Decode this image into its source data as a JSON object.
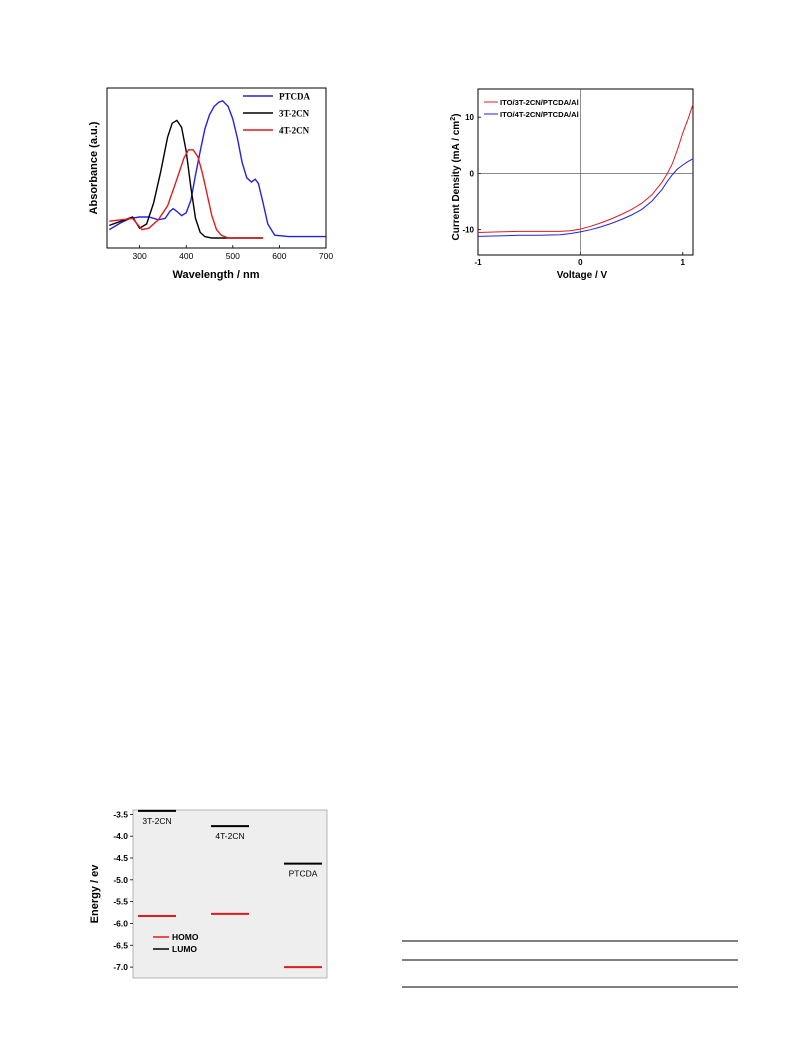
{
  "figures": [
    {
      "chart_data": {
        "type": "line",
        "title": "",
        "xlabel": "Wavelength / nm",
        "ylabel": "Absorbance (a.u.)",
        "xlim": [
          230,
          700
        ],
        "ylim": [
          0,
          1
        ],
        "x_ticks": [
          "300",
          "400",
          "500",
          "600",
          "700"
        ],
        "y_ticks_shown": false,
        "legend_position": "top-right",
        "series": [
          {
            "name": "PTCDA",
            "color": "#2222dd",
            "x": [
              235,
              260,
              280,
              300,
              320,
              340,
              355,
              365,
              372,
              380,
              390,
              400,
              410,
              420,
              430,
              440,
              450,
              460,
              470,
              478,
              490,
              500,
              510,
              520,
              530,
              540,
              548,
              555,
              565,
              575,
              590,
              620,
              660,
              700
            ],
            "y": [
              0.06,
              0.11,
              0.14,
              0.15,
              0.15,
              0.13,
              0.14,
              0.19,
              0.21,
              0.19,
              0.16,
              0.18,
              0.27,
              0.45,
              0.62,
              0.78,
              0.88,
              0.94,
              0.97,
              0.98,
              0.94,
              0.85,
              0.71,
              0.54,
              0.43,
              0.4,
              0.42,
              0.39,
              0.25,
              0.1,
              0.02,
              0.01,
              0.01,
              0.01
            ]
          },
          {
            "name": "3T-2CN",
            "color": "#000000",
            "x": [
              235,
              260,
              285,
              300,
              315,
              330,
              345,
              360,
              370,
              380,
              390,
              400,
              410,
              420,
              430,
              440,
              455,
              470,
              500,
              530,
              565
            ],
            "y": [
              0.09,
              0.12,
              0.15,
              0.07,
              0.1,
              0.25,
              0.47,
              0.72,
              0.82,
              0.84,
              0.79,
              0.62,
              0.36,
              0.14,
              0.04,
              0.01,
              0.0,
              0.0,
              0.0,
              0.0,
              0.0
            ]
          },
          {
            "name": "4T-2CN",
            "color": "#e11b1b",
            "x": [
              235,
              260,
              285,
              305,
              320,
              340,
              360,
              380,
              395,
              405,
              415,
              425,
              435,
              445,
              455,
              465,
              475,
              490,
              520,
              565
            ],
            "y": [
              0.12,
              0.13,
              0.14,
              0.06,
              0.07,
              0.13,
              0.23,
              0.42,
              0.57,
              0.63,
              0.63,
              0.58,
              0.46,
              0.31,
              0.16,
              0.06,
              0.02,
              0.0,
              0.0,
              0.0
            ]
          }
        ]
      }
    },
    {
      "chart_data": {
        "type": "line",
        "title": "",
        "xlabel": "Voltage / V",
        "ylabel": "Current Density (mA / cm",
        "ylabel_sup": "2",
        "ylabel_tail": ")",
        "xlim": [
          -1,
          1.1
        ],
        "ylim": [
          -14.5,
          15
        ],
        "x_ticks": [
          "-1",
          "0",
          "1"
        ],
        "y_ticks": [
          "-10",
          "0",
          "10"
        ],
        "legend_position": "top-left",
        "series": [
          {
            "name": "ITO/3T-2CN/PTCDA/Al",
            "color": "#e11b1b",
            "x": [
              -1.0,
              -0.8,
              -0.6,
              -0.4,
              -0.2,
              -0.1,
              0.0,
              0.1,
              0.2,
              0.3,
              0.4,
              0.5,
              0.6,
              0.7,
              0.8,
              0.85,
              0.9,
              0.95,
              1.0,
              1.05,
              1.1
            ],
            "y": [
              -10.5,
              -10.4,
              -10.3,
              -10.3,
              -10.3,
              -10.2,
              -9.9,
              -9.4,
              -8.8,
              -8.1,
              -7.3,
              -6.4,
              -5.3,
              -3.8,
              -1.5,
              0.0,
              1.8,
              4.3,
              7.2,
              9.6,
              12.3
            ]
          },
          {
            "name": "ITO/4T-2CN/PTCDA/Al",
            "color": "#2222dd",
            "x": [
              -1.0,
              -0.8,
              -0.6,
              -0.4,
              -0.2,
              -0.1,
              0.0,
              0.1,
              0.2,
              0.3,
              0.4,
              0.5,
              0.6,
              0.7,
              0.8,
              0.85,
              0.9,
              0.95,
              1.0,
              1.05,
              1.1
            ],
            "y": [
              -11.2,
              -11.1,
              -11.0,
              -11.0,
              -10.9,
              -10.7,
              -10.4,
              -10.0,
              -9.5,
              -8.9,
              -8.2,
              -7.4,
              -6.4,
              -4.9,
              -2.8,
              -1.4,
              -0.2,
              0.8,
              1.5,
              2.1,
              2.6
            ]
          }
        ]
      }
    },
    {
      "chart_data": {
        "type": "bar",
        "title": "",
        "xlabel": "",
        "ylabel": "Energy / ev",
        "ylim": [
          -7.25,
          -3.4
        ],
        "y_ticks": [
          "-3.5",
          "-4.0",
          "-4.5",
          "-5.0",
          "-5.5",
          "-6.0",
          "-6.5",
          "-7.0"
        ],
        "categories": [
          "3T-2CN",
          "4T-2CN",
          "PTCDA"
        ],
        "legend_position": "bottom-left",
        "series": [
          {
            "name": "HOMO",
            "color": "#e11b1b",
            "values": [
              -5.83,
              -5.78,
              -7.0
            ]
          },
          {
            "name": "LUMO",
            "color": "#000000",
            "values": [
              -3.42,
              -3.77,
              -4.63
            ]
          }
        ]
      }
    }
  ],
  "table_rules": 3
}
